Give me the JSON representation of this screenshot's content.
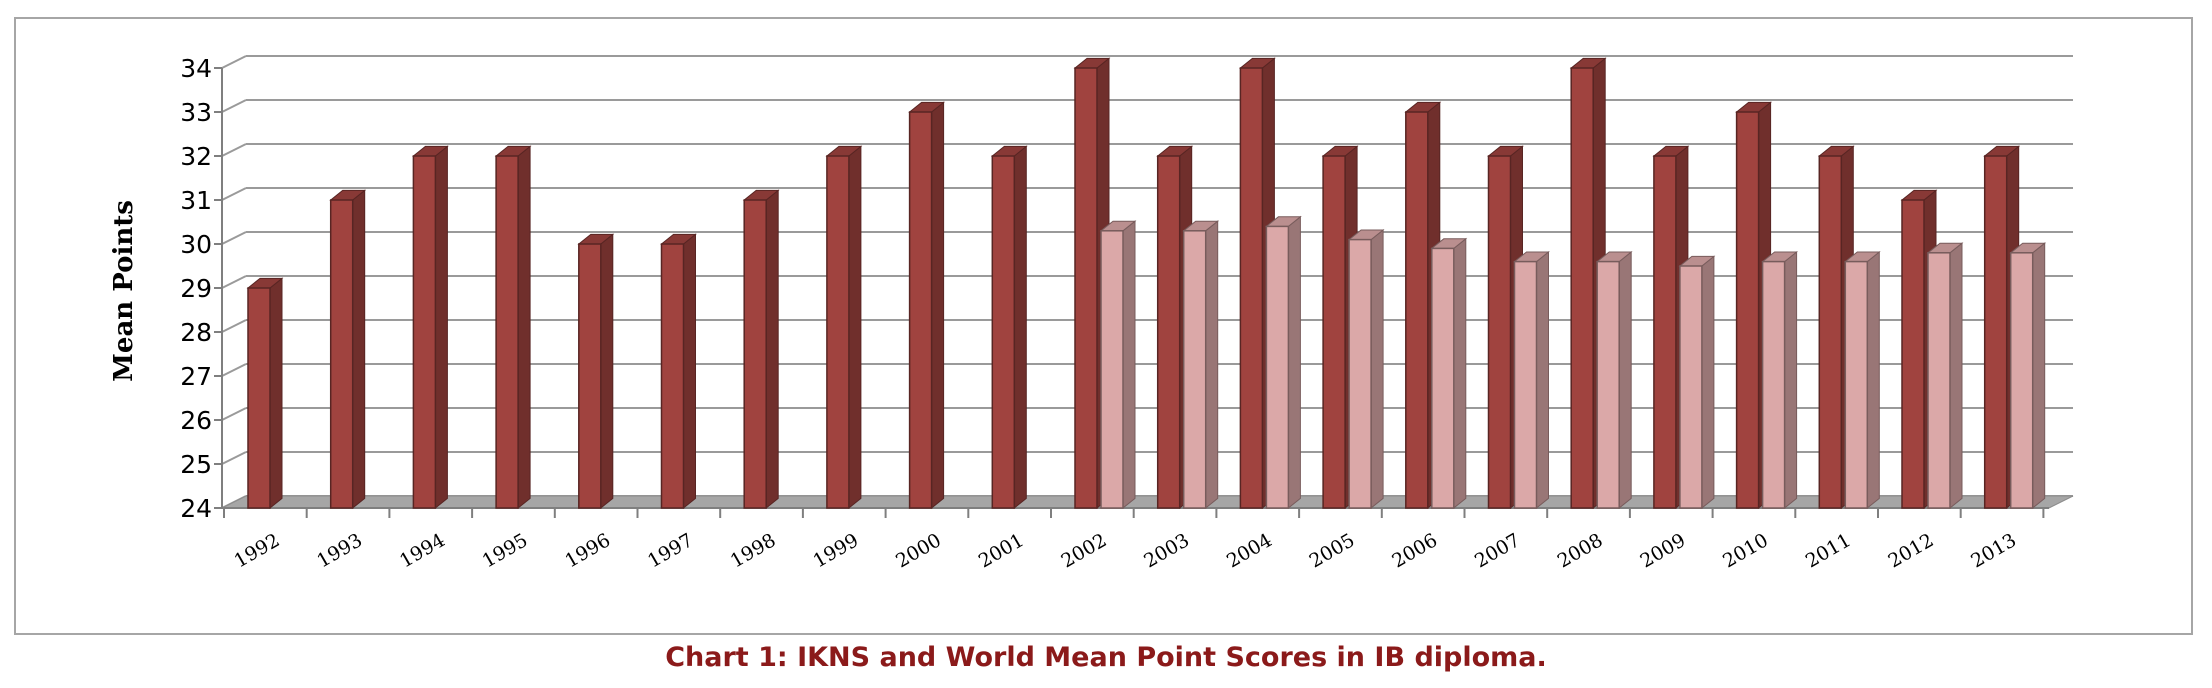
{
  "chart_data": {
    "type": "bar",
    "title": "Chart 1:  IKNS and World Mean Point Scores in IB diploma.",
    "xlabel": "",
    "ylabel": "Mean Points",
    "ylim": [
      24,
      34
    ],
    "yticks": [
      24,
      25,
      26,
      27,
      28,
      29,
      30,
      31,
      32,
      33,
      34
    ],
    "categories": [
      "1992",
      "1993",
      "1994",
      "1995",
      "1996",
      "1997",
      "1998",
      "1999",
      "2000",
      "2001",
      "2002",
      "2003",
      "2004",
      "2005",
      "2006",
      "2007",
      "2008",
      "2009",
      "2010",
      "2011",
      "2012",
      "2013"
    ],
    "series": [
      {
        "values": [
          29,
          31,
          32,
          32,
          30,
          30,
          31,
          32,
          33,
          32,
          34,
          32,
          34,
          32,
          33,
          32,
          34,
          32,
          33,
          32,
          31,
          32
        ],
        "color": "#a0433f"
      },
      {
        "values": [
          null,
          null,
          null,
          null,
          null,
          null,
          null,
          null,
          null,
          null,
          30.3,
          30.3,
          30.4,
          30.1,
          29.9,
          29.6,
          29.6,
          29.5,
          29.6,
          29.6,
          29.8,
          29.8
        ],
        "color": "#dba8a8"
      }
    ],
    "grid": true,
    "legend": "none",
    "style": "3d-clustered-column"
  }
}
